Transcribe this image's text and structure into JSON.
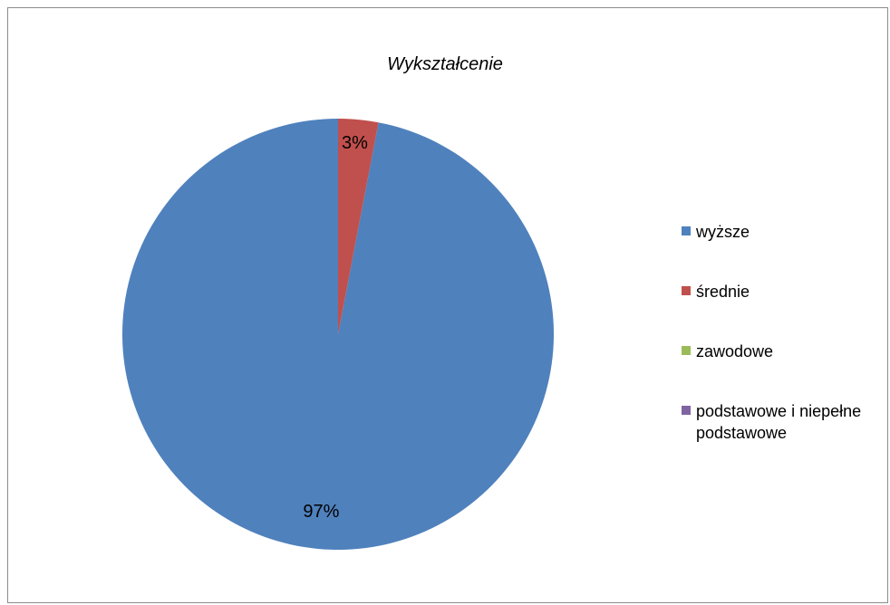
{
  "chart_data": {
    "type": "pie",
    "title": "Wykształcenie",
    "slices": [
      {
        "label": "wyższe",
        "value": 97,
        "display": "97%",
        "color": "#4f81bd"
      },
      {
        "label": "średnie",
        "value": 3,
        "display": "3%",
        "color": "#c0504d"
      },
      {
        "label": "zawodowe",
        "value": 0,
        "display": "",
        "color": "#9bbb59"
      },
      {
        "label": "podstawowe i niepełne podstawowe",
        "value": 0,
        "display": "",
        "color": "#8064a2"
      }
    ],
    "legend_position": "right"
  }
}
